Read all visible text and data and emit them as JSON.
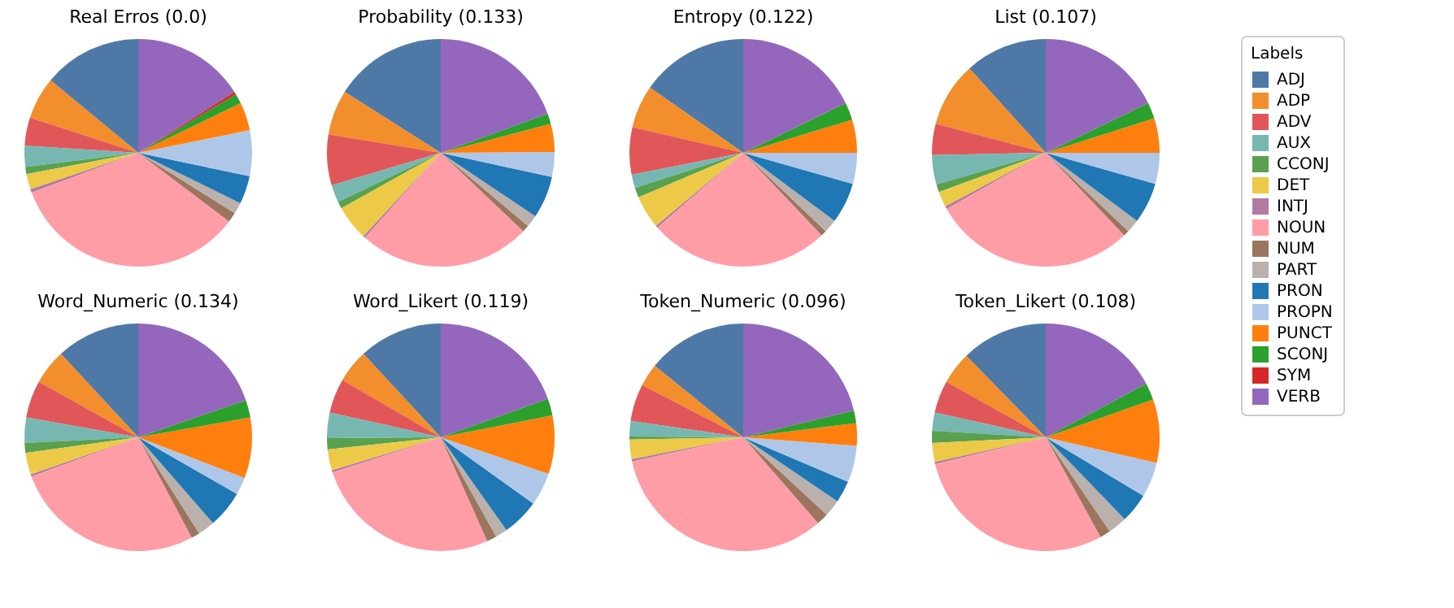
{
  "chart_data": [
    {
      "type": "pie",
      "title": "Real Erros (0.0)",
      "legend": "right",
      "legend_title": "Labels",
      "categories": [
        "ADJ",
        "ADP",
        "ADV",
        "AUX",
        "CCONJ",
        "DET",
        "INTJ",
        "NOUN",
        "NUM",
        "PART",
        "PRON",
        "PROPN",
        "PUNCT",
        "SCONJ",
        "SYM",
        "VERB"
      ],
      "values": [
        14,
        6,
        4,
        3,
        1,
        2.2,
        0.5,
        34,
        1.4,
        1.6,
        4,
        6.5,
        4,
        1.4,
        0.4,
        16
      ],
      "colors": [
        "#4e79a7",
        "#f28e2b",
        "#e15759",
        "#76b7b2",
        "#59a14f",
        "#edc948",
        "#b07aa1",
        "#ff9da7",
        "#9c755f",
        "#bab0ac",
        "#1f77b4",
        "#aec7e8",
        "#ff7f0e",
        "#2ca02c",
        "#d62728",
        "#9467bd"
      ]
    },
    {
      "type": "pie",
      "title": "Probability (0.133)",
      "categories": [
        null,
        null,
        null,
        null,
        null,
        null,
        null,
        null,
        null,
        null,
        null,
        null,
        null,
        null,
        null,
        null
      ],
      "values": [
        16,
        6.4,
        7.2,
        2.5,
        1,
        5,
        0.3,
        24.5,
        1,
        1.7,
        6,
        3.5,
        4,
        1.5,
        0,
        19.4
      ],
      "colors": [
        "#4e79a7",
        "#f28e2b",
        "#e15759",
        "#76b7b2",
        "#59a14f",
        "#edc948",
        "#b07aa1",
        "#ff9da7",
        "#9c755f",
        "#bab0ac",
        "#1f77b4",
        "#aec7e8",
        "#ff7f0e",
        "#2ca02c",
        "#d62728",
        "#9467bd"
      ]
    },
    {
      "type": "pie",
      "title": "Entropy (0.122)",
      "categories": [
        null,
        null,
        null,
        null,
        null,
        null,
        null,
        null,
        null,
        null,
        null,
        null,
        null,
        null,
        null,
        null
      ],
      "values": [
        15.3,
        6.1,
        6.7,
        1.9,
        1.4,
        4.7,
        0.3,
        25.7,
        0.8,
        1.9,
        5.8,
        4.4,
        4.7,
        2.5,
        0,
        17.8
      ],
      "colors": [
        "#4e79a7",
        "#f28e2b",
        "#e15759",
        "#76b7b2",
        "#59a14f",
        "#edc948",
        "#b07aa1",
        "#ff9da7",
        "#9c755f",
        "#bab0ac",
        "#1f77b4",
        "#aec7e8",
        "#ff7f0e",
        "#2ca02c",
        "#d62728",
        "#9467bd"
      ]
    },
    {
      "type": "pie",
      "title": "List (0.107)",
      "categories": [
        null,
        null,
        null,
        null,
        null,
        null,
        null,
        null,
        null,
        null,
        null,
        null,
        null,
        null,
        null,
        null
      ],
      "values": [
        11.7,
        9.2,
        4.4,
        4.2,
        1.1,
        2.2,
        0.4,
        28.9,
        0.8,
        1.9,
        5.8,
        4.4,
        4.9,
        2.3,
        0,
        17.8
      ],
      "colors": [
        "#4e79a7",
        "#f28e2b",
        "#e15759",
        "#76b7b2",
        "#59a14f",
        "#edc948",
        "#b07aa1",
        "#ff9da7",
        "#9c755f",
        "#bab0ac",
        "#1f77b4",
        "#aec7e8",
        "#ff7f0e",
        "#2ca02c",
        "#d62728",
        "#9467bd"
      ]
    },
    {
      "type": "pie",
      "title": "Word_Numeric (0.134)",
      "categories": [
        null,
        null,
        null,
        null,
        null,
        null,
        null,
        null,
        null,
        null,
        null,
        null,
        null,
        null,
        null,
        null
      ],
      "values": [
        11.9,
        5,
        5.3,
        3.6,
        1.4,
        3.1,
        0.3,
        27.2,
        1.2,
        2.4,
        5.3,
        2.5,
        8.6,
        2.5,
        0,
        19.7
      ],
      "colors": [
        "#4e79a7",
        "#f28e2b",
        "#e15759",
        "#76b7b2",
        "#59a14f",
        "#edc948",
        "#b07aa1",
        "#ff9da7",
        "#9c755f",
        "#bab0ac",
        "#1f77b4",
        "#aec7e8",
        "#ff7f0e",
        "#2ca02c",
        "#d62728",
        "#9467bd"
      ]
    },
    {
      "type": "pie",
      "title": "Word_Likert (0.119)",
      "categories": [
        null,
        null,
        null,
        null,
        null,
        null,
        null,
        null,
        null,
        null,
        null,
        null,
        null,
        null,
        null,
        null
      ],
      "values": [
        11.9,
        4.7,
        4.9,
        3.6,
        1.6,
        3,
        0.3,
        26.7,
        1.4,
        1.7,
        5.3,
        4.7,
        8.3,
        2.4,
        0,
        19.5
      ],
      "colors": [
        "#4e79a7",
        "#f28e2b",
        "#e15759",
        "#76b7b2",
        "#59a14f",
        "#edc948",
        "#b07aa1",
        "#ff9da7",
        "#9c755f",
        "#bab0ac",
        "#1f77b4",
        "#aec7e8",
        "#ff7f0e",
        "#2ca02c",
        "#d62728",
        "#9467bd"
      ]
    },
    {
      "type": "pie",
      "title": "Token_Numeric (0.096)",
      "categories": [
        null,
        null,
        null,
        null,
        null,
        null,
        null,
        null,
        null,
        null,
        null,
        null,
        null,
        null,
        null,
        null
      ],
      "values": [
        14.2,
        3.2,
        5.3,
        2.2,
        0.4,
        2.8,
        0.3,
        33,
        1.7,
        2.4,
        3.1,
        5.2,
        3.2,
        1.8,
        0,
        21.2
      ],
      "colors": [
        "#4e79a7",
        "#f28e2b",
        "#e15759",
        "#76b7b2",
        "#59a14f",
        "#edc948",
        "#b07aa1",
        "#ff9da7",
        "#9c755f",
        "#bab0ac",
        "#1f77b4",
        "#aec7e8",
        "#ff7f0e",
        "#2ca02c",
        "#d62728",
        "#9467bd"
      ]
    },
    {
      "type": "pie",
      "title": "Token_Likert (0.108)",
      "categories": [
        null,
        null,
        null,
        null,
        null,
        null,
        null,
        null,
        null,
        null,
        null,
        null,
        null,
        null,
        null,
        null
      ],
      "values": [
        12.3,
        4.6,
        4.6,
        2.6,
        1.7,
        2.7,
        0.3,
        29.2,
        1.5,
        2.7,
        4.2,
        5,
        9,
        2.4,
        0,
        17.2
      ],
      "colors": [
        "#4e79a7",
        "#f28e2b",
        "#e15759",
        "#76b7b2",
        "#59a14f",
        "#edc948",
        "#b07aa1",
        "#ff9da7",
        "#9c755f",
        "#bab0ac",
        "#1f77b4",
        "#aec7e8",
        "#ff7f0e",
        "#2ca02c",
        "#d62728",
        "#9467bd"
      ]
    }
  ]
}
